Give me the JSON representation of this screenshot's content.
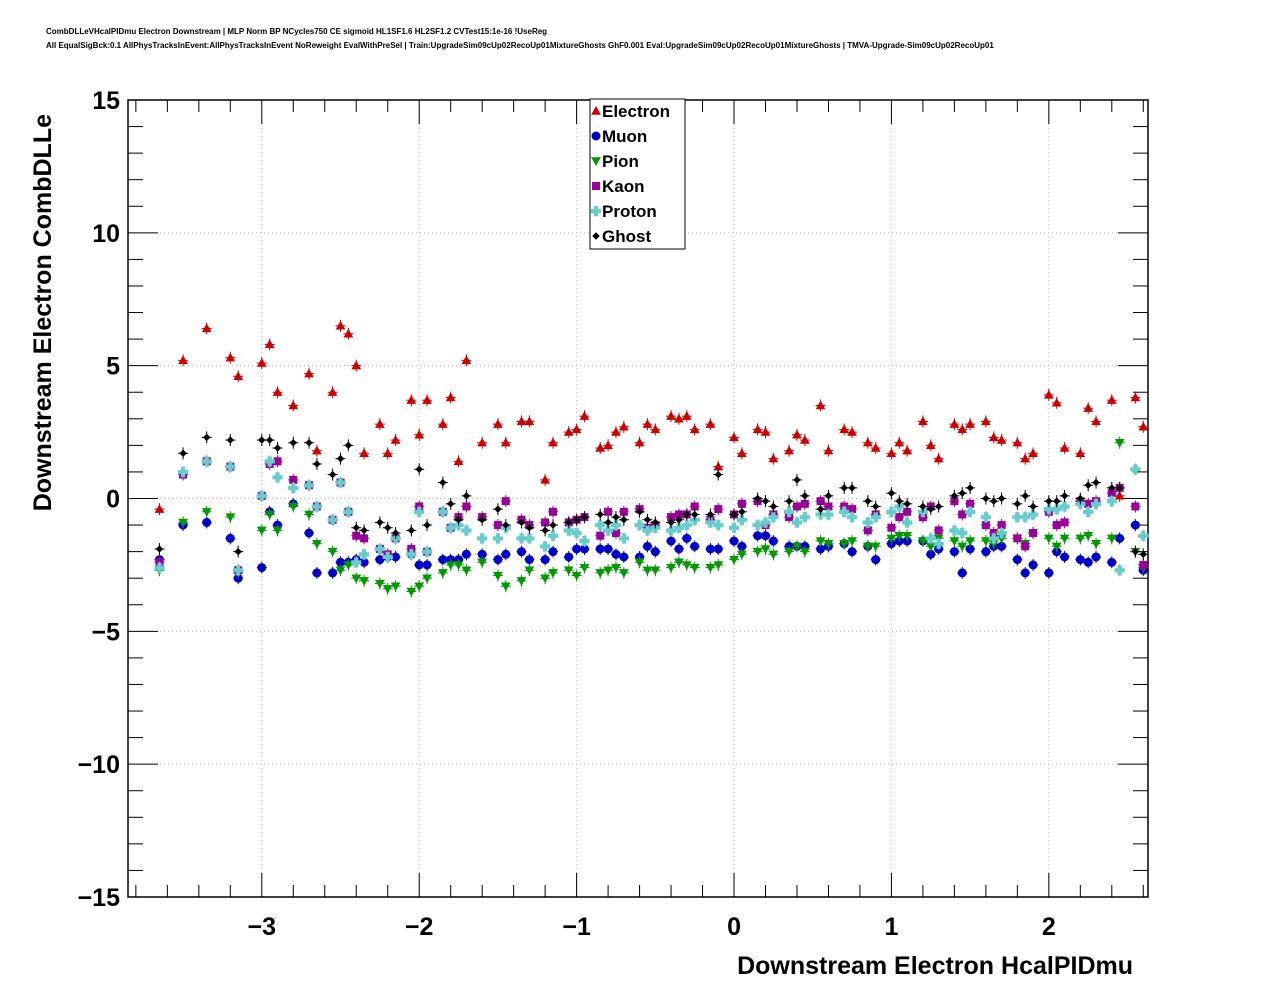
{
  "header": {
    "line1": "CombDLLeVHcalPIDmu Electron Downstream | MLP Norm BP NCycles750 CE sigmoid HL1SF1.6 HL2SF1.2 CVTest15:1e-16 !UseReg",
    "line2": "All EqualSigBck:0.1 AllPhysTracksInEvent:AllPhysTracksInEvent NoReweight EvalWithPreSel | Train:UpgradeSim09cUp02RecoUp01MixtureGhosts GhF0.001 Eval:UpgradeSim09cUp02RecoUp01MixtureGhosts | TMVA-Upgrade-Sim09cUp02RecoUp01"
  },
  "chart_data": {
    "type": "scatter",
    "xlabel": "Downstream Electron HcalPIDmu",
    "ylabel": "Downstream Electron CombDLLe",
    "xlim": [
      -3.85,
      2.63
    ],
    "ylim": [
      -15,
      15
    ],
    "x_ticks": [
      -3,
      -2,
      -1,
      0,
      1,
      2
    ],
    "x_tick_labels": [
      "−3",
      "−2",
      "−1",
      "0",
      "1",
      "2"
    ],
    "y_ticks": [
      -15,
      -10,
      -5,
      0,
      5,
      10,
      15
    ],
    "y_tick_labels": [
      "−15",
      "−10",
      "−5",
      "0",
      "5",
      "10",
      "15"
    ],
    "grid": true,
    "legend_position": "top-center",
    "x": [
      -3.65,
      -3.5,
      -3.35,
      -3.2,
      -3.15,
      -3.0,
      -2.95,
      -2.9,
      -2.8,
      -2.7,
      -2.65,
      -2.55,
      -2.5,
      -2.45,
      -2.4,
      -2.35,
      -2.25,
      -2.2,
      -2.15,
      -2.05,
      -2.0,
      -1.95,
      -1.85,
      -1.8,
      -1.75,
      -1.7,
      -1.6,
      -1.5,
      -1.45,
      -1.35,
      -1.3,
      -1.2,
      -1.15,
      -1.05,
      -1.0,
      -0.95,
      -0.85,
      -0.8,
      -0.75,
      -0.7,
      -0.6,
      -0.55,
      -0.5,
      -0.4,
      -0.35,
      -0.3,
      -0.25,
      -0.15,
      -0.1,
      0.0,
      0.05,
      0.15,
      0.2,
      0.25,
      0.35,
      0.4,
      0.45,
      0.55,
      0.6,
      0.7,
      0.75,
      0.85,
      0.9,
      1.0,
      1.05,
      1.1,
      1.2,
      1.25,
      1.3,
      1.4,
      1.45,
      1.5,
      1.6,
      1.65,
      1.7,
      1.8,
      1.85,
      1.9,
      2.0,
      2.05,
      2.1,
      2.2,
      2.25,
      2.3,
      2.4,
      2.45,
      2.55,
      2.6
    ],
    "series": [
      {
        "name": "Electron",
        "color": "#cc0000",
        "marker": "triangle-up",
        "values": [
          -0.4,
          5.2,
          6.4,
          5.3,
          4.6,
          5.1,
          5.8,
          4.0,
          3.5,
          4.7,
          1.8,
          4.0,
          6.5,
          6.2,
          5.0,
          1.7,
          2.8,
          1.7,
          2.2,
          3.7,
          2.4,
          3.7,
          2.8,
          3.8,
          1.4,
          5.2,
          2.1,
          2.8,
          2.1,
          2.9,
          2.9,
          0.7,
          2.1,
          2.5,
          2.6,
          3.1,
          1.9,
          2.0,
          2.5,
          2.7,
          2.1,
          2.8,
          2.6,
          3.1,
          3.0,
          3.1,
          2.6,
          2.8,
          1.2,
          2.3,
          1.7,
          2.6,
          2.5,
          1.5,
          1.8,
          2.4,
          2.2,
          3.5,
          1.8,
          2.6,
          2.5,
          2.1,
          1.9,
          1.7,
          2.1,
          1.8,
          2.9,
          2.0,
          1.5,
          2.8,
          2.6,
          2.8,
          2.9,
          2.3,
          2.2,
          2.1,
          1.5,
          1.7,
          3.9,
          3.6,
          1.9,
          1.7,
          3.4,
          2.9,
          3.7,
          0.1,
          3.8,
          2.7
        ]
      },
      {
        "name": "Muon",
        "color": "#0000cc",
        "marker": "circle",
        "values": [
          -2.3,
          -1.0,
          -0.9,
          -1.5,
          -3.0,
          -2.6,
          -0.5,
          -1.0,
          -0.2,
          -1.3,
          -2.8,
          -2.8,
          -2.4,
          -2.4,
          -2.3,
          -2.4,
          -2.3,
          -2.2,
          -2.2,
          -2.1,
          -2.5,
          -2.5,
          -2.3,
          -2.3,
          -2.3,
          -2.1,
          -2.1,
          -2.3,
          -2.1,
          -2.0,
          -2.3,
          -2.3,
          -2.0,
          -2.2,
          -1.9,
          -1.9,
          -1.9,
          -1.9,
          -2.1,
          -2.2,
          -2.2,
          -1.8,
          -2.0,
          -1.6,
          -1.9,
          -1.5,
          -1.8,
          -1.9,
          -1.9,
          -1.6,
          -1.8,
          -1.4,
          -1.4,
          -1.6,
          -1.8,
          -1.8,
          -1.8,
          -1.9,
          -1.8,
          -1.7,
          -2.0,
          -1.8,
          -2.3,
          -1.7,
          -1.6,
          -1.6,
          -1.6,
          -2.1,
          -1.9,
          -2.0,
          -2.8,
          -1.9,
          -2.0,
          -1.8,
          -1.8,
          -2.3,
          -2.8,
          -2.5,
          -2.8,
          -2.0,
          -2.2,
          -2.3,
          -2.4,
          -2.2,
          -2.4,
          -1.5,
          -1.0,
          -2.7
        ]
      },
      {
        "name": "Pion",
        "color": "#009900",
        "marker": "triangle-down",
        "values": [
          -2.7,
          -0.9,
          -0.5,
          -0.7,
          -2.8,
          -1.2,
          -0.6,
          -1.2,
          -0.3,
          -0.6,
          -1.7,
          -2.0,
          -2.7,
          -2.5,
          -3.0,
          -3.1,
          -3.2,
          -3.4,
          -3.3,
          -3.5,
          -3.3,
          -3.0,
          -2.8,
          -2.5,
          -2.5,
          -2.7,
          -2.4,
          -2.9,
          -3.3,
          -3.1,
          -2.7,
          -3.0,
          -2.8,
          -2.7,
          -2.9,
          -2.6,
          -2.8,
          -2.7,
          -2.6,
          -2.8,
          -2.4,
          -2.7,
          -2.7,
          -2.6,
          -2.4,
          -2.5,
          -2.6,
          -2.6,
          -2.5,
          -2.3,
          -2.1,
          -2.0,
          -1.9,
          -2.1,
          -2.0,
          -1.8,
          -2.0,
          -1.6,
          -1.7,
          -1.7,
          -1.6,
          -1.8,
          -1.8,
          -1.5,
          -1.4,
          -1.4,
          -1.6,
          -1.8,
          -1.5,
          -1.6,
          -1.8,
          -1.6,
          -1.6,
          -1.7,
          -1.5,
          -1.5,
          -1.7,
          -1.3,
          -1.5,
          -1.8,
          -1.5,
          -1.5,
          -1.4,
          -1.7,
          -1.5,
          2.1,
          -2.0,
          -2.6
        ]
      },
      {
        "name": "Kaon",
        "color": "#990099",
        "marker": "square",
        "values": [
          -2.4,
          0.9,
          1.4,
          1.2,
          -2.7,
          0.1,
          1.3,
          1.4,
          0.7,
          0.5,
          -0.3,
          -0.8,
          0.6,
          -0.5,
          -1.4,
          -1.5,
          -1.9,
          -2.1,
          -1.5,
          -1.9,
          -0.3,
          -2.0,
          -0.5,
          -1.1,
          -0.7,
          -0.3,
          -0.7,
          -1.0,
          -0.1,
          -0.8,
          -1.0,
          -0.9,
          -0.5,
          -0.9,
          -0.8,
          -0.7,
          -1.4,
          -0.5,
          -1.3,
          -0.5,
          -0.4,
          -1.1,
          -1.0,
          -0.7,
          -0.6,
          -0.6,
          -0.3,
          -0.8,
          -0.4,
          -0.6,
          -0.2,
          -0.1,
          -1.0,
          -0.6,
          -0.7,
          -0.3,
          -0.2,
          -0.1,
          -0.3,
          -0.3,
          -0.4,
          -1.2,
          -0.6,
          -1.1,
          -0.7,
          -0.5,
          -0.7,
          -0.3,
          -1.2,
          -0.1,
          -0.6,
          -0.2,
          -1.0,
          -1.3,
          -1.0,
          -1.5,
          -1.8,
          -1.3,
          -0.5,
          -1.0,
          -0.9,
          -0.1,
          -0.2,
          -0.1,
          0.2,
          0.4,
          -0.3,
          -2.5
        ]
      },
      {
        "name": "Proton",
        "color": "#66cccc",
        "marker": "cross",
        "values": [
          -2.6,
          1.0,
          1.4,
          1.2,
          -2.7,
          0.1,
          1.4,
          0.8,
          0.4,
          0.5,
          -0.3,
          -0.8,
          0.6,
          -0.5,
          -2.4,
          -2.1,
          -1.9,
          -2.2,
          -1.5,
          -2.1,
          -0.5,
          -2.0,
          -0.5,
          -1.1,
          -1.0,
          -1.2,
          -1.5,
          -1.5,
          -1.1,
          -1.5,
          -1.5,
          -1.8,
          -1.4,
          -1.2,
          -1.3,
          -1.6,
          -1.0,
          -1.2,
          -1.0,
          -1.5,
          -1.0,
          -1.2,
          -1.1,
          -1.2,
          -1.1,
          -1.0,
          -0.8,
          -0.9,
          -1.0,
          -1.1,
          -0.8,
          -1.0,
          -0.9,
          -0.7,
          -0.5,
          -0.9,
          -0.7,
          -0.6,
          -0.6,
          -0.5,
          -0.7,
          -0.9,
          -0.7,
          -0.5,
          -0.3,
          -0.9,
          -0.5,
          -1.5,
          -1.7,
          -1.2,
          -1.3,
          -0.5,
          -0.7,
          -1.5,
          -1.3,
          -0.7,
          -0.7,
          -0.6,
          -0.4,
          -0.4,
          -0.3,
          -0.2,
          -0.5,
          -0.2,
          -0.1,
          -2.7,
          1.1,
          -1.4
        ]
      },
      {
        "name": "Ghost",
        "color": "#000000",
        "marker": "diamond",
        "values": [
          -1.9,
          1.7,
          2.3,
          2.2,
          -2.0,
          2.2,
          2.2,
          1.9,
          2.1,
          2.1,
          1.3,
          0.9,
          1.5,
          2.0,
          -1.1,
          -1.2,
          -0.9,
          -1.1,
          -1.3,
          -1.2,
          1.1,
          -1.0,
          0.6,
          -0.2,
          -0.8,
          0.1,
          -0.8,
          -0.4,
          -1.0,
          -0.9,
          -1.1,
          -1.2,
          -1.0,
          -0.9,
          -0.8,
          -0.7,
          -0.6,
          -0.9,
          -0.7,
          -0.8,
          -0.5,
          -0.8,
          -0.9,
          -0.9,
          -0.8,
          -0.6,
          -0.6,
          -0.6,
          0.9,
          -0.6,
          -0.5,
          0.0,
          -0.1,
          -0.3,
          -0.1,
          0.7,
          0.1,
          -0.4,
          0.1,
          0.4,
          0.4,
          -0.1,
          -0.3,
          0.2,
          -0.1,
          -0.2,
          -0.3,
          -0.4,
          -0.3,
          0.1,
          0.2,
          0.4,
          0.0,
          -0.1,
          0.0,
          -0.2,
          0.1,
          -0.3,
          -0.1,
          -0.1,
          0.1,
          0.0,
          0.5,
          0.6,
          0.4,
          0.4,
          -2.0,
          -2.1
        ]
      }
    ]
  }
}
